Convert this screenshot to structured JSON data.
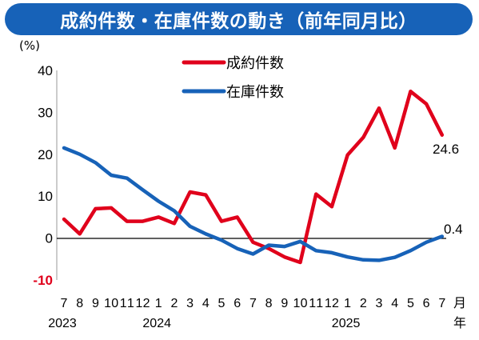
{
  "title": "成約件数・在庫件数の動き（前年同月比）",
  "colors": {
    "banner": "#1762b8",
    "contracts": "#e0001b",
    "inventory": "#1762b8"
  },
  "chart_data": {
    "type": "line",
    "title": "成約件数・在庫件数の動き（前年同月比）",
    "y_unit": "(%)",
    "ylim": [
      -10,
      40
    ],
    "y_ticks": [
      "40",
      "30",
      "20",
      "10",
      "0",
      "-10"
    ],
    "x_tick_labels": [
      "7",
      "8",
      "9",
      "10",
      "11",
      "12",
      "1",
      "2",
      "3",
      "4",
      "5",
      "6",
      "7",
      "8",
      "9",
      "10",
      "11",
      "12",
      "1",
      "2",
      "3",
      "4",
      "5",
      "6",
      "7"
    ],
    "x_unit": "月",
    "year_unit": "年",
    "years": [
      {
        "label": "2023",
        "index": 0
      },
      {
        "label": "2024",
        "index": 6
      },
      {
        "label": "2025",
        "index": 18
      }
    ],
    "x": [
      "2023-07",
      "2023-08",
      "2023-09",
      "2023-10",
      "2023-11",
      "2023-12",
      "2024-01",
      "2024-02",
      "2024-03",
      "2024-04",
      "2024-05",
      "2024-06",
      "2024-07",
      "2024-08",
      "2024-09",
      "2024-10",
      "2024-11",
      "2024-12",
      "2025-01",
      "2025-02",
      "2025-03",
      "2025-04",
      "2025-05",
      "2025-06",
      "2025-07"
    ],
    "series": [
      {
        "name": "成約件数",
        "color": "#e0001b",
        "values": [
          4.5,
          1.0,
          7.0,
          7.2,
          4.0,
          4.0,
          5.0,
          3.5,
          11.0,
          10.3,
          4.0,
          5.0,
          -1.0,
          -2.5,
          -4.5,
          -5.8,
          10.5,
          7.5,
          19.8,
          24.0,
          31.0,
          21.5,
          35.0,
          32.0,
          24.6
        ],
        "end_label": "24.6"
      },
      {
        "name": "在庫件数",
        "color": "#1762b8",
        "values": [
          21.5,
          20.0,
          18.0,
          15.0,
          14.3,
          11.5,
          8.8,
          6.5,
          2.8,
          1.0,
          -0.5,
          -2.5,
          -3.8,
          -1.7,
          -2.0,
          -0.8,
          -3.0,
          -3.5,
          -4.5,
          -5.2,
          -5.3,
          -4.6,
          -3.0,
          -1.0,
          0.4
        ],
        "end_label": "0.4"
      }
    ],
    "legend_position": "top-center",
    "grid": false,
    "zero_line": true
  }
}
